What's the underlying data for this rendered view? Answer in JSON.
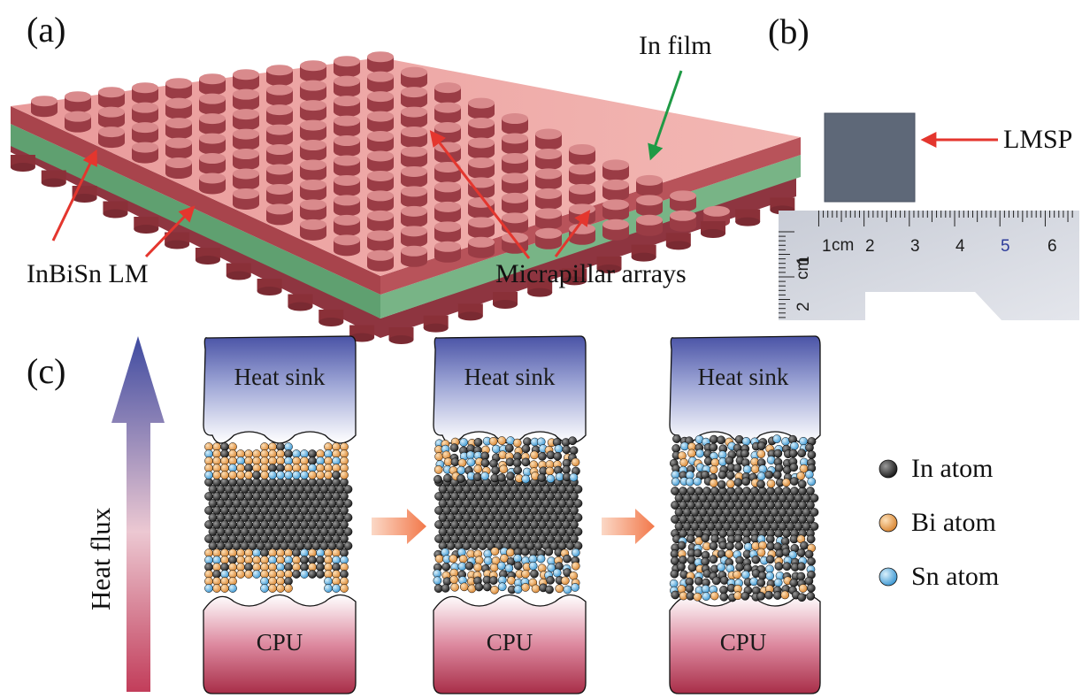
{
  "panels": {
    "a": "(a)",
    "b": "(b)",
    "c": "(c)"
  },
  "panel_a": {
    "film_label": "In film",
    "lm_label": "InBiSn LM",
    "pillar_label": "Micrapillar arrays"
  },
  "panel_b": {
    "sample_label": "LMSP",
    "ruler_unit": "cm",
    "ruler_numbers_h": [
      "1",
      "2",
      "3",
      "4",
      "5",
      "6"
    ],
    "ruler_numbers_v": [
      "1",
      "2"
    ]
  },
  "panel_c": {
    "heat_flux_label": "Heat flux",
    "stages": [
      {
        "top": "Heat sink",
        "bottom": "CPU"
      },
      {
        "top": "Heat sink",
        "bottom": "CPU"
      },
      {
        "top": "Heat sink",
        "bottom": "CPU"
      }
    ]
  },
  "legend": [
    {
      "label": "In atom",
      "color": "#2a2a2a"
    },
    {
      "label": "Bi atom",
      "color": "#e8a050"
    },
    {
      "label": "Sn atom",
      "color": "#5aaedf"
    }
  ],
  "colors": {
    "pillar_red": "#a04048",
    "film_green": "#6aaa78",
    "arrow_red": "#e4362e",
    "arrow_green": "#1f9a45",
    "heatsink_blue": "#4b55a8",
    "cpu_red": "#a8324c"
  }
}
